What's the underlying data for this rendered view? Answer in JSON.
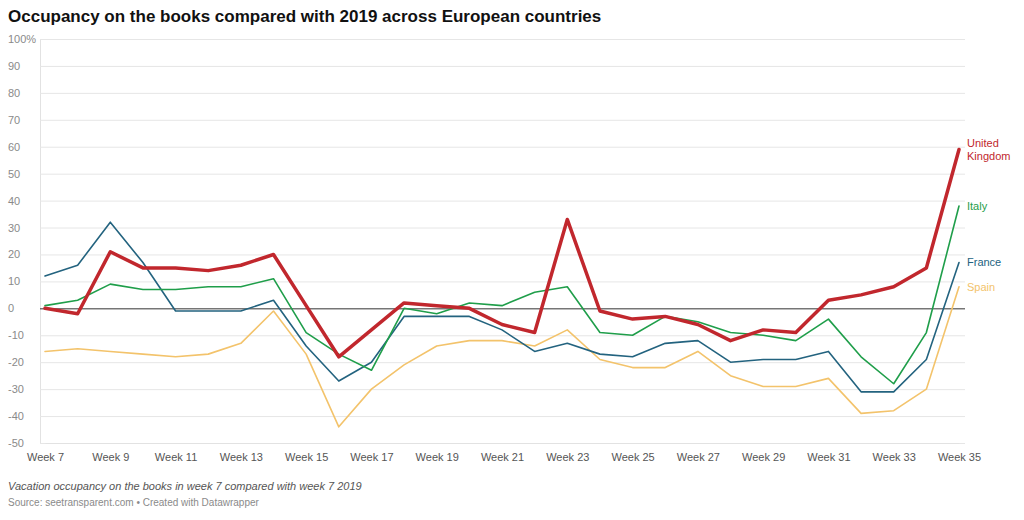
{
  "chart_data": {
    "type": "line",
    "title": "Occupancy on the books compared with 2019 across European countries",
    "caption": "Vacation occupancy on the books in week 7 compared with week 7 2019",
    "source": "Source: seetransparent.com • Created with Datawrapper",
    "categories": [
      "Week 7",
      null,
      "Week 9",
      null,
      "Week 11",
      null,
      "Week 13",
      null,
      "Week 15",
      null,
      "Week 17",
      null,
      "Week 19",
      null,
      "Week 21",
      null,
      "Week 23",
      null,
      "Week 25",
      null,
      "Week 27",
      null,
      "Week 29",
      null,
      "Week 31",
      null,
      "Week 33",
      null,
      "Week 35"
    ],
    "series": [
      {
        "name": "United Kingdom",
        "color": "#c1272d",
        "values": [
          0,
          -2,
          21,
          15,
          15,
          14,
          16,
          20,
          1,
          -18,
          -8,
          2,
          1,
          0,
          -6,
          -9,
          33,
          -1,
          -4,
          -3,
          -6,
          -12,
          -8,
          -9,
          3,
          5,
          8,
          15,
          59
        ]
      },
      {
        "name": "Italy",
        "color": "#1f9e4a",
        "values": [
          1,
          3,
          9,
          7,
          7,
          8,
          8,
          11,
          -9,
          -17,
          -23,
          0,
          -2,
          2,
          1,
          6,
          8,
          -9,
          -10,
          -3,
          -5,
          -9,
          -10,
          -12,
          -4,
          -18,
          -28,
          -9,
          38
        ]
      },
      {
        "name": "France",
        "color": "#23637f",
        "values": [
          12,
          16,
          32,
          17,
          -1,
          -1,
          -1,
          3,
          -14,
          -27,
          -20,
          -3,
          -3,
          -3,
          -8,
          -16,
          -13,
          -17,
          -18,
          -13,
          -12,
          -20,
          -19,
          -19,
          -16,
          -31,
          -31,
          -19,
          17
        ]
      },
      {
        "name": "Spain",
        "color": "#f3c36b",
        "values": [
          -16,
          -15,
          -16,
          -17,
          -18,
          -17,
          -13,
          -1,
          -17,
          -44,
          -30,
          -21,
          -14,
          -12,
          -12,
          -14,
          -8,
          -19,
          -22,
          -22,
          -16,
          -25,
          -29,
          -29,
          -26,
          -39,
          -38,
          -30,
          8
        ]
      }
    ],
    "ylim": [
      -50,
      100
    ],
    "yticks": [
      -50,
      -40,
      -30,
      -20,
      -10,
      0,
      10,
      20,
      30,
      40,
      50,
      60,
      70,
      80,
      90,
      {
        "value": 100,
        "label": "100%"
      }
    ],
    "grid": true
  }
}
